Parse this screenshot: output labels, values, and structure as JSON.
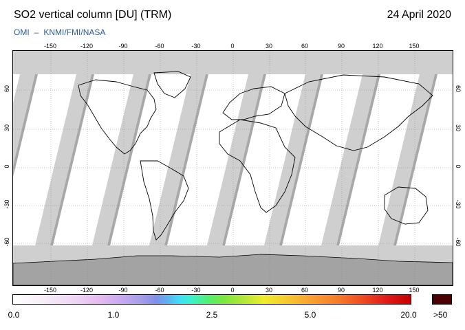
{
  "header": {
    "title": "SO2 vertical column [DU] (TRM)",
    "date": "24 April 2020",
    "credit_left": "OMI",
    "credit_sep": "–",
    "credit_right": "KNMI/FMI/NASA"
  },
  "map": {
    "lon_ticks": [
      "-150",
      "-120",
      "-90",
      "-60",
      "-30",
      "0",
      "30",
      "60",
      "90",
      "120",
      "150"
    ],
    "lat_ticks": [
      "60",
      "30",
      "0",
      "-30",
      "-60"
    ],
    "graticule": "dotted",
    "colors": {
      "no_data": "#cfcfcf",
      "swath_edge": "#a8a8a8",
      "land_outline": "#000000",
      "polar_no_data": "#a3a3a3"
    }
  },
  "colorbar": {
    "labels": [
      "0.0",
      "1.0",
      "2.5",
      "5.0",
      "20.0"
    ],
    "overflow_label": ">50",
    "overflow_color": "#4a0000"
  }
}
